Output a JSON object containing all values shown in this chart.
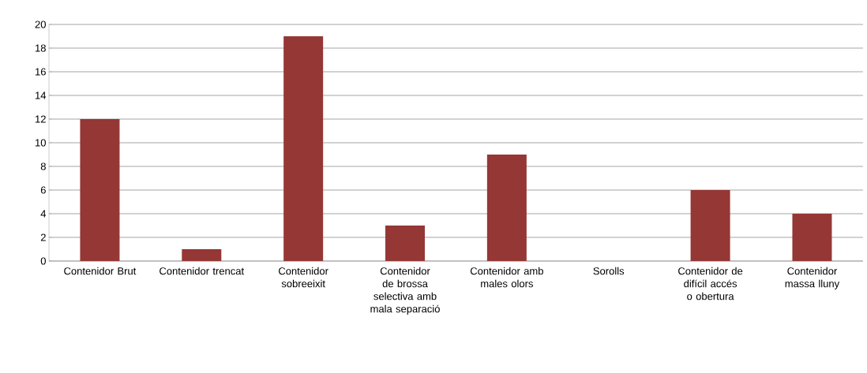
{
  "chart_data": {
    "type": "bar",
    "categories": [
      "Contenidor Brut",
      "Contenidor trencat",
      "Contenidor sobreeixit",
      "Contenidor de brossa selectiva amb mala separació",
      "Contenidor amb males olors",
      "Sorolls",
      "Contenidor de difícil accés o obertura",
      "Contenidor massa lluny"
    ],
    "values": [
      12,
      1,
      19,
      3,
      9,
      0,
      6,
      4
    ],
    "color": "#953735",
    "ylim": [
      0,
      20
    ],
    "yticks": [
      0,
      2,
      4,
      6,
      8,
      10,
      12,
      14,
      16,
      18,
      20
    ],
    "grid": "y"
  }
}
